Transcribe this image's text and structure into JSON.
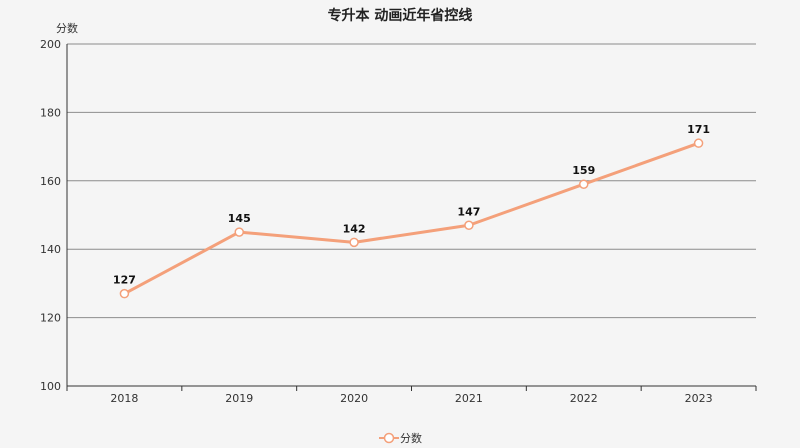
{
  "chart_data": {
    "type": "line",
    "title": "专升本 动画近年省控线",
    "ylabel": "分数",
    "xlabel": "",
    "categories": [
      "2018",
      "2019",
      "2020",
      "2021",
      "2022",
      "2023"
    ],
    "series": [
      {
        "name": "分数",
        "values": [
          127,
          145,
          142,
          147,
          159,
          171
        ]
      }
    ],
    "ylim": [
      100,
      200
    ],
    "yticks": [
      100,
      120,
      140,
      160,
      180,
      200
    ],
    "grid": true,
    "legend_position": "bottom-center",
    "line_color": "#f4a07a"
  }
}
